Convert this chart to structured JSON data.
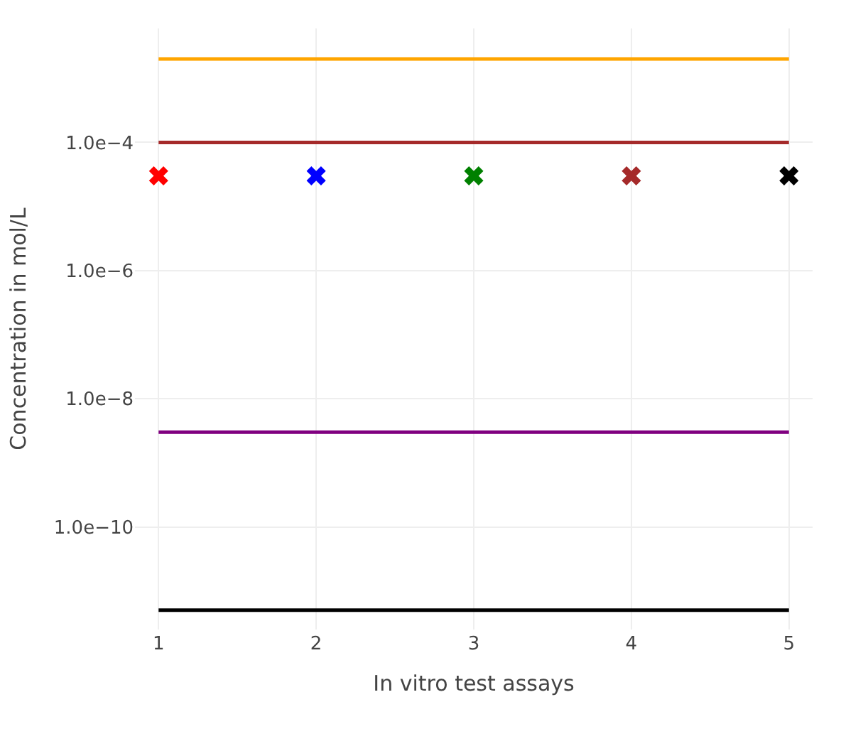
{
  "chart_data": {
    "type": "line",
    "xlabel": "In vitro test assays",
    "ylabel": "Concentration in mol/L",
    "log": "y",
    "grid": true,
    "xlim": [
      0.85,
      5.15
    ],
    "xticks": [
      1,
      2,
      3,
      4,
      5
    ],
    "ylim": [
      2.5e-12,
      0.006
    ],
    "yticks": [
      {
        "value": 0.0001,
        "label": "1.0e−4"
      },
      {
        "value": 1e-06,
        "label": "1.0e−6"
      },
      {
        "value": 1e-08,
        "label": "1.0e−8"
      },
      {
        "value": 1e-10,
        "label": "1.0e−10"
      }
    ],
    "series": [
      {
        "color": "#ffa500",
        "x": [
          1,
          5
        ],
        "values": [
          0.002,
          0.002
        ],
        "marker": "none",
        "line_style": "solid"
      },
      {
        "color": "#a52a2a",
        "x": [
          1,
          5
        ],
        "values": [
          0.0001,
          0.0001
        ],
        "marker": "none",
        "line_style": "solid"
      },
      {
        "color": "#800080",
        "x": [
          1,
          5
        ],
        "values": [
          3e-09,
          3e-09
        ],
        "marker": "none",
        "line_style": "solid"
      },
      {
        "color": "#000000",
        "x": [
          1,
          5
        ],
        "values": [
          5e-12,
          5e-12
        ],
        "marker": "none",
        "line_style": "solid"
      },
      {
        "type": "scatter",
        "x": [
          1,
          2,
          3,
          4,
          5
        ],
        "values": [
          3e-05,
          3e-05,
          3e-05,
          3e-05,
          3e-05
        ],
        "colors": [
          "#ff0000",
          "#0000ff",
          "#008000",
          "#a52a2a",
          "#000000"
        ],
        "marker": "cross"
      }
    ]
  }
}
